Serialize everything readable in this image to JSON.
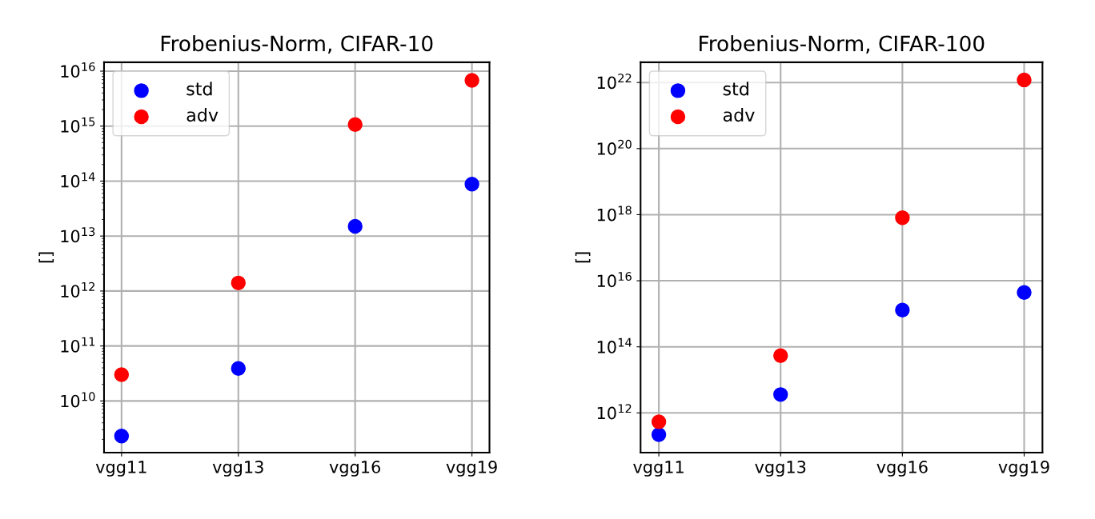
{
  "chart_data": [
    {
      "type": "scatter",
      "title": "Frobenius-Norm, CIFAR-10",
      "ylabel": "[]",
      "categories": [
        "vgg11",
        "vgg13",
        "vgg16",
        "vgg19"
      ],
      "log": "y",
      "grid": true,
      "legend": "top left",
      "marker": "circle",
      "ylim": [
        1150000000.0,
        1.45e+16
      ],
      "yticks": [
        {
          "value": 10000000000.0,
          "label": "10$^{10}$"
        },
        {
          "value": 100000000000.0,
          "label": "10$^{11}$"
        },
        {
          "value": 1000000000000.0,
          "label": "10$^{12}$"
        },
        {
          "value": 10000000000000.0,
          "label": "10$^{13}$"
        },
        {
          "value": 100000000000000.0,
          "label": "10$^{14}$"
        },
        {
          "value": 1000000000000000.0,
          "label": "10$^{15}$"
        },
        {
          "value": 1e+16,
          "label": "10$^{16}$"
        }
      ],
      "series": [
        {
          "name": "std",
          "color": "#0000ff",
          "values": [
            2300000000.0,
            39000000000.0,
            15000000000000.0,
            88000000000000.0
          ]
        },
        {
          "name": "adv",
          "color": "#ff0000",
          "values": [
            30000000000.0,
            1400000000000.0,
            1070000000000000.0,
            6800000000000000.0
          ]
        }
      ]
    },
    {
      "type": "scatter",
      "title": "Frobenius-Norm, CIFAR-100",
      "ylabel": "[]",
      "categories": [
        "vgg11",
        "vgg13",
        "vgg16",
        "vgg19"
      ],
      "log": "y",
      "grid": true,
      "legend": "top left",
      "marker": "circle",
      "ylim": [
        63000000000.0,
        4.1e+22
      ],
      "yticks": [
        {
          "value": 1000000000000.0,
          "label": "10$^{12}$"
        },
        {
          "value": 100000000000000.0,
          "label": "10$^{14}$"
        },
        {
          "value": 1e+16,
          "label": "10$^{16}$"
        },
        {
          "value": 1e+18,
          "label": "10$^{18}$"
        },
        {
          "value": 1e+20,
          "label": "10$^{20}$"
        },
        {
          "value": 1e+22,
          "label": "10$^{22}$"
        }
      ],
      "series": [
        {
          "name": "std",
          "color": "#0000ff",
          "values": [
            220000000000.0,
            3600000000000.0,
            1300000000000000.0,
            4400000000000000.0
          ]
        },
        {
          "name": "adv",
          "color": "#ff0000",
          "values": [
            540000000000.0,
            54000000000000.0,
            8.1e+17,
            1.2e+22
          ]
        }
      ]
    }
  ]
}
